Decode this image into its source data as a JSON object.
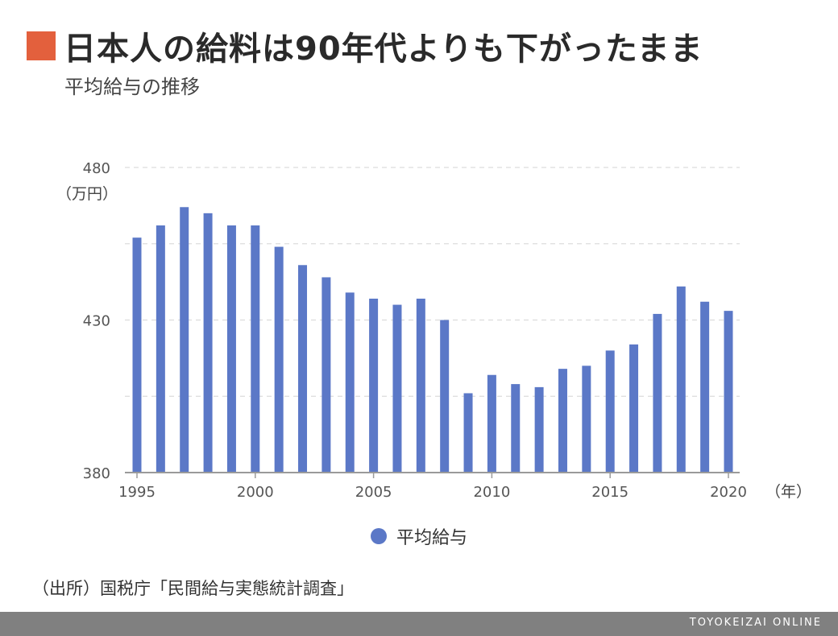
{
  "header": {
    "title": "日本人の給料は90年代よりも下がったまま",
    "subtitle": "平均給与の推移"
  },
  "footer": {
    "source": "（出所）国税庁「民間給与実態統計調査」",
    "brand": "TOYOKEIZAI ONLINE"
  },
  "colors": {
    "accent": "#e3603d",
    "bar": "#5b78c7",
    "axis": "#9a9a9a",
    "grid": "#dcdcdc",
    "footer_bg": "#808080"
  },
  "chart_data": {
    "type": "bar",
    "title": "日本人の給料は90年代よりも下がったまま",
    "subtitle": "平均給与の推移",
    "y_unit": "（万円）",
    "x_unit": "（年）",
    "ylim": [
      380,
      480
    ],
    "yticks": [
      380,
      430,
      480
    ],
    "xticks": [
      1995,
      2000,
      2005,
      2010,
      2015,
      2020
    ],
    "grid": true,
    "legend_position": "bottom",
    "categories": [
      1995,
      1996,
      1997,
      1998,
      1999,
      2000,
      2001,
      2002,
      2003,
      2004,
      2005,
      2006,
      2007,
      2008,
      2009,
      2010,
      2011,
      2012,
      2013,
      2014,
      2015,
      2016,
      2017,
      2018,
      2019,
      2020
    ],
    "series": [
      {
        "name": "平均給与",
        "values": [
          457,
          461,
          467,
          465,
          461,
          461,
          454,
          448,
          444,
          439,
          437,
          435,
          437,
          430,
          406,
          412,
          409,
          408,
          414,
          415,
          420,
          422,
          432,
          441,
          436,
          433
        ]
      }
    ]
  }
}
